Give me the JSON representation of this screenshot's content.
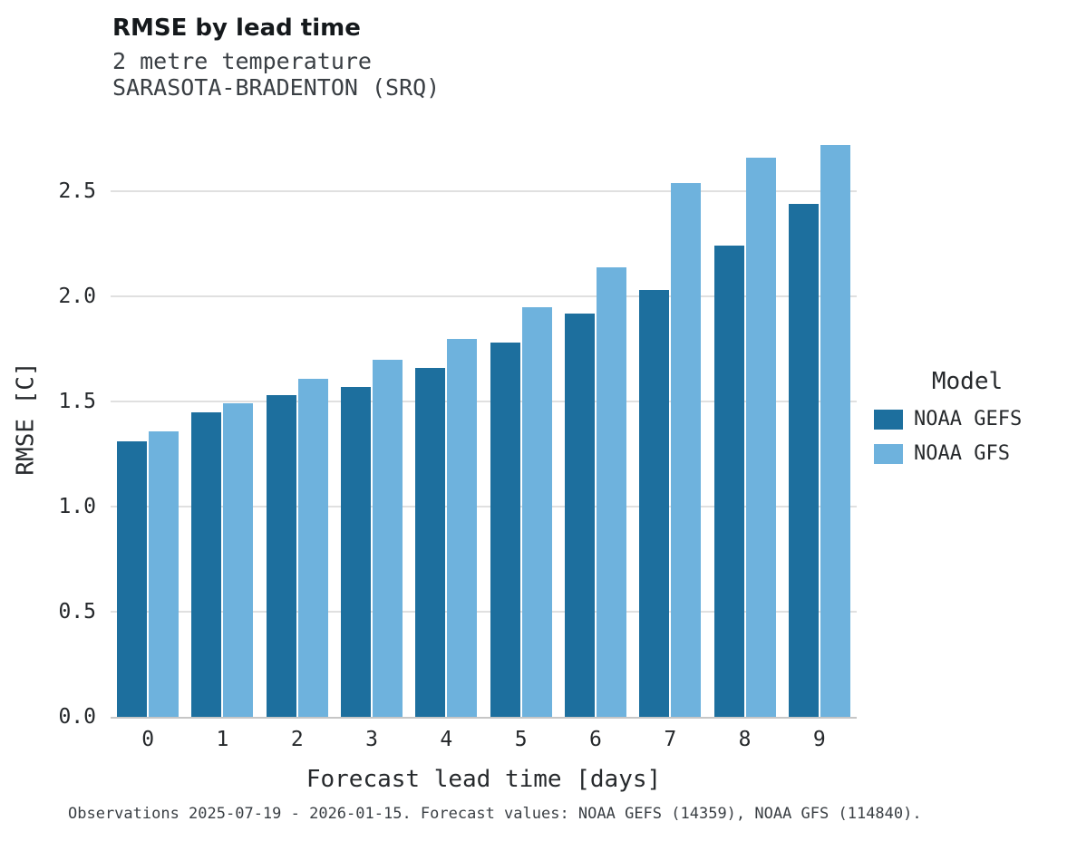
{
  "chart_data": {
    "type": "bar",
    "title": "RMSE by lead time",
    "subtitle_line1": "2 metre temperature",
    "subtitle_line2": "SARASOTA-BRADENTON (SRQ)",
    "xlabel": "Forecast lead time [days]",
    "ylabel": "RMSE [C]",
    "legend_title": "Model",
    "legend_position": "right",
    "grid": "horizontal",
    "categories": [
      0,
      1,
      2,
      3,
      4,
      5,
      6,
      7,
      8,
      9
    ],
    "series": [
      {
        "name": "NOAA GEFS",
        "color": "#1d6f9e",
        "values": [
          1.31,
          1.45,
          1.53,
          1.57,
          1.66,
          1.78,
          1.92,
          2.03,
          2.24,
          2.44
        ]
      },
      {
        "name": "NOAA GFS",
        "color": "#6eb2dd",
        "values": [
          1.36,
          1.49,
          1.61,
          1.7,
          1.8,
          1.95,
          2.14,
          2.54,
          2.66,
          2.72
        ]
      }
    ],
    "ylim": [
      0,
      2.85
    ],
    "yticks": [
      0.0,
      0.5,
      1.0,
      1.5,
      2.0,
      2.5
    ],
    "caption": "Observations 2025-07-19 - 2026-01-15. Forecast values: NOAA GEFS (14359), NOAA GFS (114840)."
  }
}
